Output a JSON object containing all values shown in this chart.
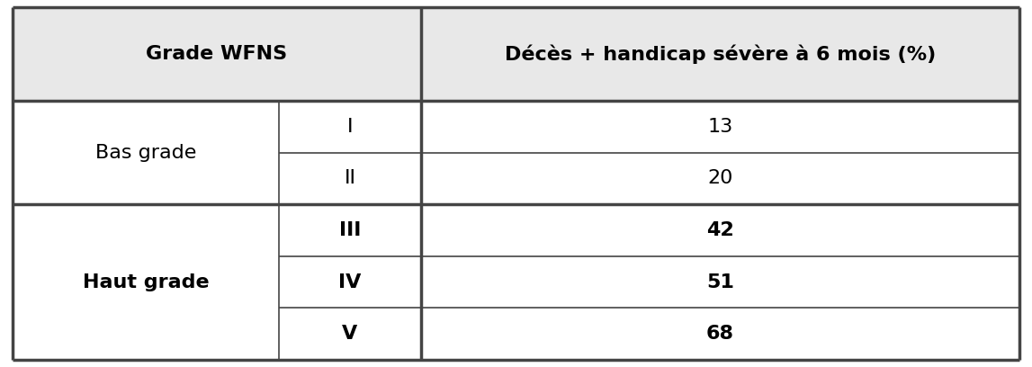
{
  "col1_header": "Grade WFNS",
  "col2_header": "Décès + handicap sévère à 6 mois (%)",
  "groups": [
    {
      "group_label": "Bas grade",
      "bold_group": false,
      "rows": [
        {
          "grade": "I",
          "value": "13",
          "bold": false
        },
        {
          "grade": "II",
          "value": "20",
          "bold": false
        }
      ]
    },
    {
      "group_label": "Haut grade",
      "bold_group": true,
      "rows": [
        {
          "grade": "III",
          "value": "42",
          "bold": true
        },
        {
          "grade": "IV",
          "value": "51",
          "bold": true
        },
        {
          "grade": "V",
          "value": "68",
          "bold": true
        }
      ]
    }
  ],
  "header_bg": "#e8e8e8",
  "body_bg": "#ffffff",
  "border_color": "#444444",
  "thick_lw": 2.5,
  "thin_lw": 1.2,
  "header_fontsize": 16,
  "body_fontsize": 16,
  "fig_width": 11.47,
  "fig_height": 4.08,
  "dpi": 100
}
